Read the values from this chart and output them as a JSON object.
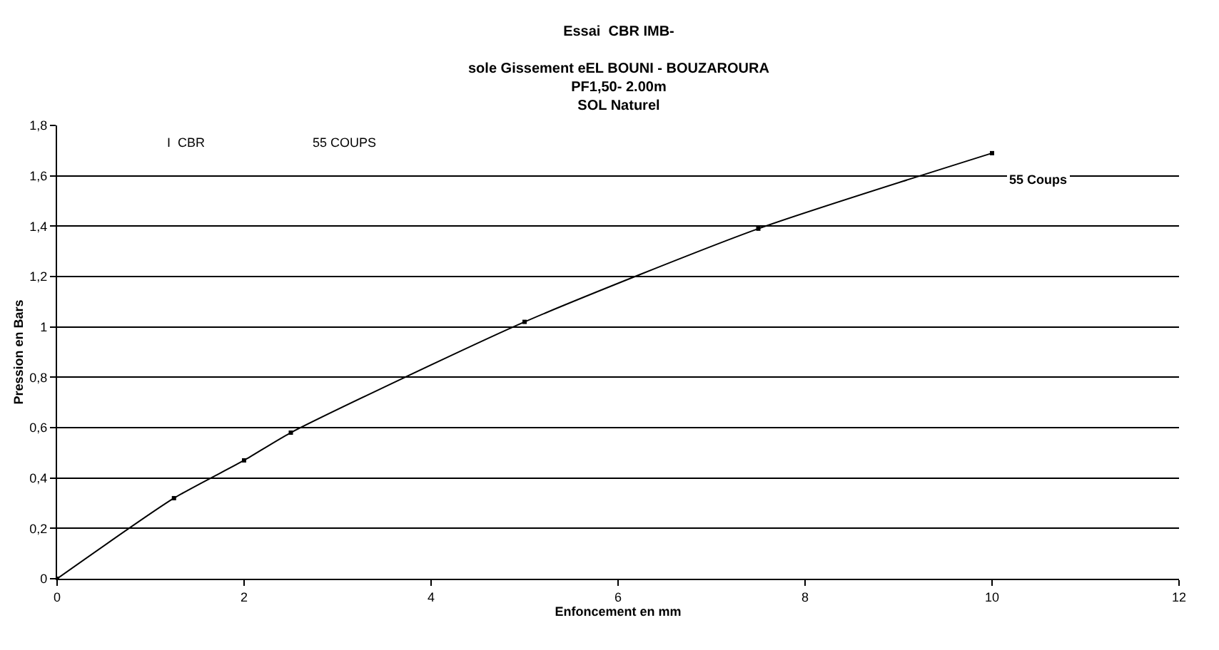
{
  "chart_data": {
    "type": "line",
    "title": "Essai  CBR IMB-",
    "subtitle": "sole Gissement eEL BOUNI - BOUZAROURA\nPF1,50- 2.00m\nSOL Naturel",
    "xlabel": "Enfoncement en mm",
    "ylabel": "Pression en Bars",
    "x": [
      0,
      1.25,
      2,
      2.5,
      5,
      7.5,
      10
    ],
    "series": [
      {
        "name": "55 Coups",
        "color": "#000000",
        "values": [
          0,
          0.32,
          0.47,
          0.58,
          1.02,
          1.39,
          1.69
        ]
      }
    ],
    "annotations": [
      "I  CBR",
      "55 COUPS"
    ],
    "xlim": [
      0,
      12
    ],
    "xticks": [
      0,
      2,
      4,
      6,
      8,
      10,
      12
    ],
    "ylim": [
      0,
      1.8
    ],
    "yticks": [
      {
        "value": 0,
        "label": "0"
      },
      {
        "value": 0.2,
        "label": "0,2"
      },
      {
        "value": 0.4,
        "label": "0,4"
      },
      {
        "value": 0.6,
        "label": "0,6"
      },
      {
        "value": 0.8,
        "label": "0,8"
      },
      {
        "value": 1,
        "label": "1"
      },
      {
        "value": 1.2,
        "label": "1,2"
      },
      {
        "value": 1.4,
        "label": "1,4"
      },
      {
        "value": 1.6,
        "label": "1,6"
      },
      {
        "value": 1.8,
        "label": "1,8"
      }
    ],
    "grid": "y",
    "marker": "square",
    "line_style": "solid",
    "legend": false
  }
}
